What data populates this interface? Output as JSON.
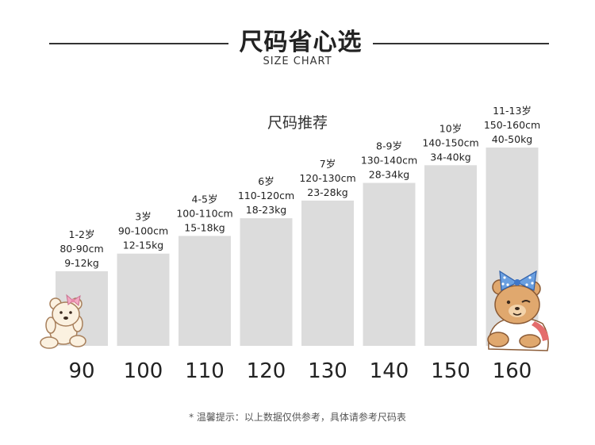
{
  "header": {
    "title": "尺码省心选",
    "subtitle": "SIZE CHART"
  },
  "footer_note": "* 温馨提示：以上数据仅供参考，具体请参考尺码表",
  "colors": {
    "bar": "#dcdcdc",
    "text": "#222222",
    "rule": "#333333"
  },
  "chart_data": {
    "type": "bar",
    "title": "尺码推荐",
    "xlabel": "",
    "ylabel": "",
    "categories": [
      "90",
      "100",
      "110",
      "120",
      "130",
      "140",
      "150",
      "160"
    ],
    "values": [
      90,
      100,
      110,
      120,
      130,
      140,
      150,
      160
    ],
    "annotations": [
      {
        "age": "1-2岁",
        "height": "80-90cm",
        "weight": "9-12kg"
      },
      {
        "age": "3岁",
        "height": "90-100cm",
        "weight": "12-15kg"
      },
      {
        "age": "4-5岁",
        "height": "100-110cm",
        "weight": "15-18kg"
      },
      {
        "age": "6岁",
        "height": "110-120cm",
        "weight": "18-23kg"
      },
      {
        "age": "7岁",
        "height": "120-130cm",
        "weight": "23-28kg"
      },
      {
        "age": "8-9岁",
        "height": "130-140cm",
        "weight": "28-34kg"
      },
      {
        "age": "10岁",
        "height": "140-150cm",
        "weight": "34-40kg"
      },
      {
        "age": "11-13岁",
        "height": "150-160cm",
        "weight": "40-50kg"
      }
    ],
    "grid": false,
    "legend": "none"
  },
  "decorations": [
    {
      "name": "teddy-bear-left-icon",
      "description": "cream teddy bear with pink bow"
    },
    {
      "name": "teddy-bear-right-icon",
      "description": "brown teddy bear with blue polka-dot bow"
    }
  ]
}
